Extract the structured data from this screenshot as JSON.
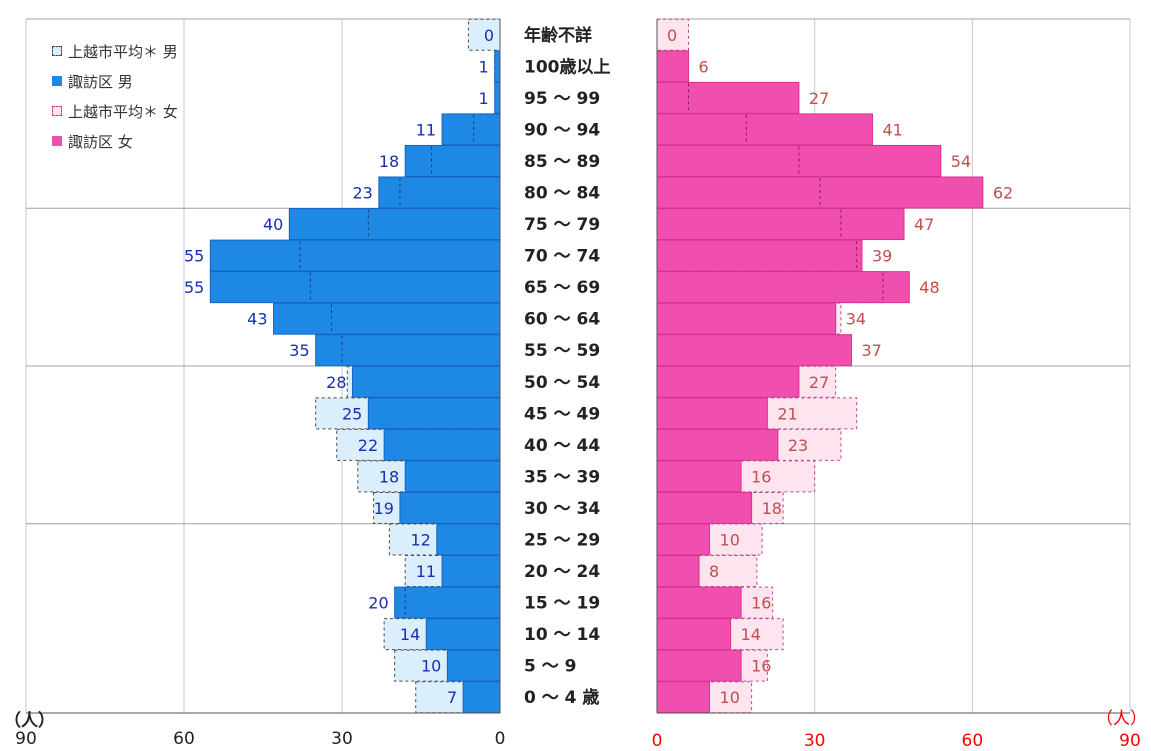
{
  "chart_data": {
    "type": "bar",
    "categories": [
      "年齢不詳",
      "100歳以上",
      "95 ～ 99",
      "90 ～ 94",
      "85 ～ 89",
      "80 ～ 84",
      "75 ～ 79",
      "70 ～ 74",
      "65 ～ 69",
      "60 ～ 64",
      "55 ～ 59",
      "50 ～ 54",
      "45 ～ 49",
      "40 ～ 44",
      "35 ～ 39",
      "30 ～ 34",
      "25 ～ 29",
      "20 ～ 24",
      "15 ～ 19",
      "10 ～ 14",
      "5 ～ 9",
      "0 ～ 4 歳"
    ],
    "series": [
      {
        "name": "上越市平均＊ 男",
        "side": "left",
        "style": "dashed",
        "color": "#dbeefb",
        "values": [
          6,
          1,
          0,
          5,
          13,
          19,
          25,
          38,
          36,
          32,
          30,
          29,
          35,
          31,
          27,
          24,
          21,
          18,
          18,
          22,
          20,
          16
        ]
      },
      {
        "name": "諏訪区 男",
        "side": "left",
        "style": "solid",
        "color": "#1e88e5",
        "values": [
          0,
          1,
          1,
          11,
          18,
          23,
          40,
          55,
          55,
          43,
          35,
          28,
          25,
          22,
          18,
          19,
          12,
          11,
          20,
          14,
          10,
          7
        ]
      },
      {
        "name": "上越市平均＊ 女",
        "side": "right",
        "style": "dashed",
        "color": "#fde4ef",
        "values": [
          6,
          0,
          6,
          17,
          27,
          31,
          35,
          38,
          43,
          35,
          37,
          34,
          38,
          35,
          30,
          24,
          20,
          19,
          22,
          24,
          21,
          18
        ]
      },
      {
        "name": "諏訪区 女",
        "side": "right",
        "style": "solid",
        "color": "#f04fb0",
        "values": [
          0,
          6,
          27,
          41,
          54,
          62,
          47,
          39,
          48,
          34,
          37,
          27,
          21,
          23,
          16,
          18,
          10,
          8,
          16,
          14,
          16,
          10
        ]
      }
    ],
    "left_axis": {
      "ticks": [
        "90",
        "60",
        "30",
        "0"
      ],
      "unit": "（人）",
      "max": 90
    },
    "right_axis": {
      "ticks": [
        "0",
        "30",
        "60",
        "90"
      ],
      "unit": "（人）",
      "max": 90
    },
    "label_colors": {
      "male": "#1a2fb0",
      "female": "#c0504d",
      "right_axis": "#ff0000"
    },
    "legend_position": "top-left",
    "grid": true
  }
}
